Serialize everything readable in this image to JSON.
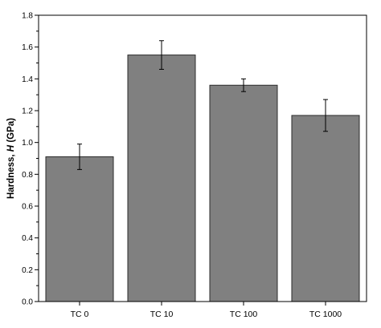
{
  "chart_data": {
    "type": "bar",
    "categories": [
      "TC 0",
      "TC 10",
      "TC 100",
      "TC 1000"
    ],
    "series": [
      {
        "values": [
          0.91,
          1.55,
          1.36,
          1.17
        ],
        "errors": [
          0.08,
          0.09,
          0.04,
          0.1
        ]
      }
    ],
    "ylabel_prefix": "Hardness, ",
    "ylabel_symbol": "H",
    "ylabel_unit": " (GPa)",
    "xlabel": "",
    "ylim": [
      0.0,
      1.8
    ],
    "yticks": [
      "0.0",
      "0.2",
      "0.4",
      "0.6",
      "0.8",
      "1.0",
      "1.2",
      "1.4",
      "1.6",
      "1.8"
    ],
    "grid": false,
    "bar_color": "#808080",
    "bar_edge_color": "#2b2b2b"
  }
}
